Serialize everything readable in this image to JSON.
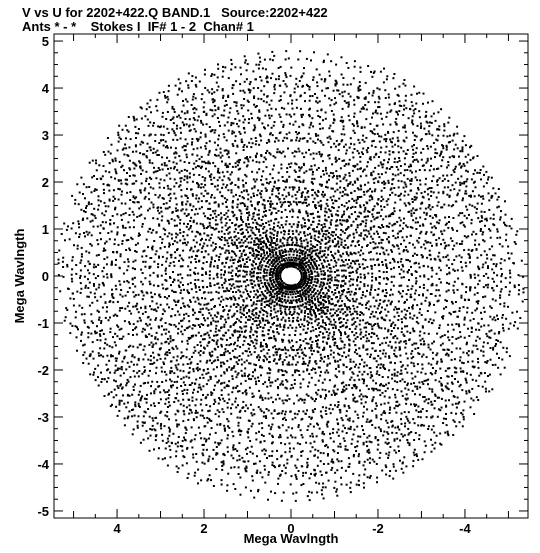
{
  "header": {
    "line1": "V vs U for 2202+422.Q BAND.1   Source:2202+422",
    "line2": "Ants * - *    Stokes I  IF# 1 - 2  Chan# 1"
  },
  "chart_data": {
    "type": "scatter",
    "title": "V vs U for 2202+422.Q BAND.1   Source:2202+422",
    "subtitle": "Ants * - *    Stokes I  IF# 1 - 2  Chan# 1",
    "xlabel": "Mega Wavlngth",
    "ylabel": "Mega Wavlngth",
    "xlim": [
      5.45,
      -5.45
    ],
    "ylim": [
      -5.15,
      5.15
    ],
    "x_reversed": true,
    "x_ticks": [
      4,
      2,
      0,
      -2,
      -4
    ],
    "x_tick_labels": [
      "4",
      "2",
      "0",
      "-2",
      "-4"
    ],
    "y_ticks": [
      5,
      4,
      3,
      2,
      1,
      0,
      -1,
      -2,
      -3,
      -4,
      -5
    ],
    "y_tick_labels": [
      "5",
      "4",
      "3",
      "2",
      "1",
      "0",
      "-1",
      "-2",
      "-3",
      "-4",
      "-5"
    ],
    "grid": false,
    "legend": "none",
    "points_description": "uv-coverage: ~2700 points arranged on concentric elliptical tracks (conjugate-symmetric), spanning roughly |u|<=5.3, |v|<=4.9",
    "marker_color": "#000000"
  }
}
